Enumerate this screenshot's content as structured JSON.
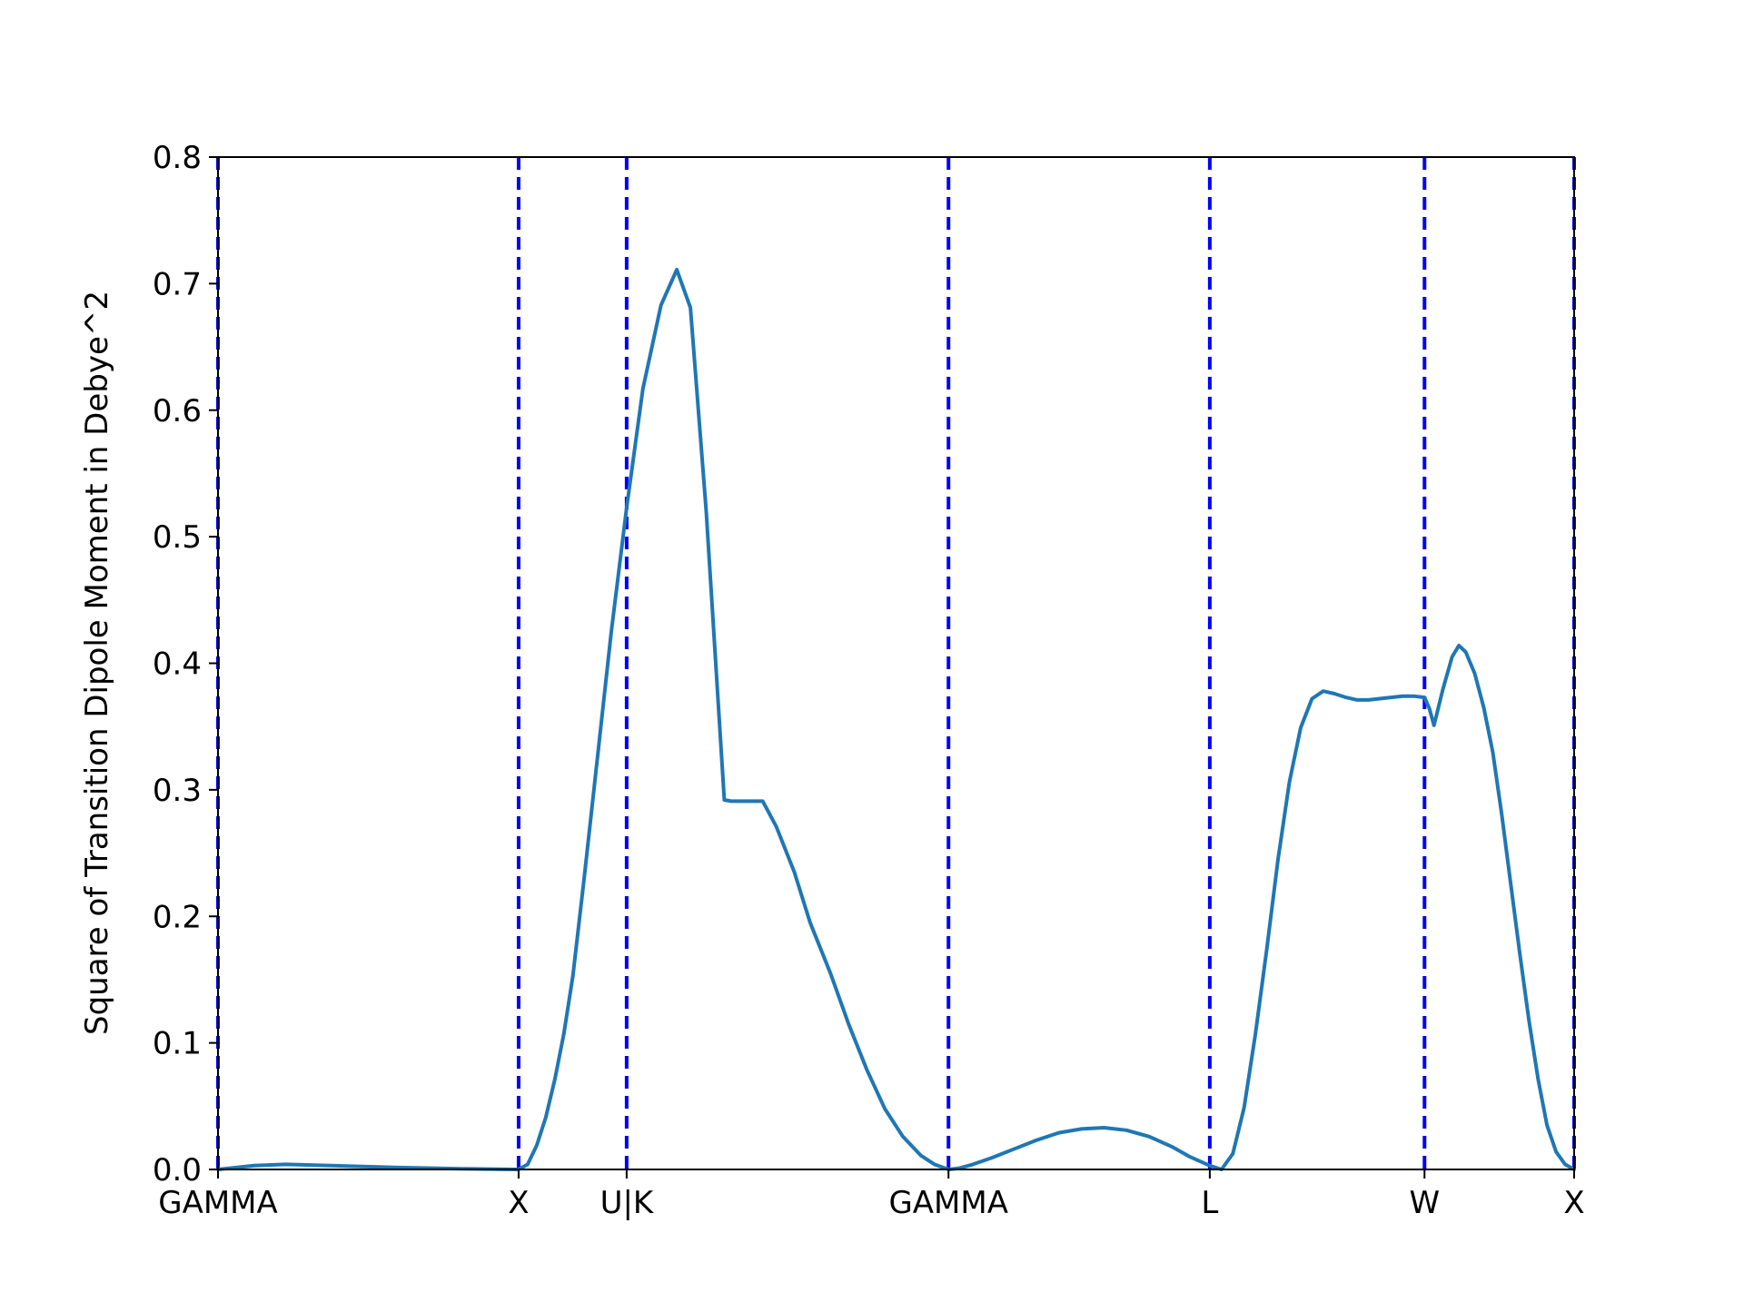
{
  "chart_data": {
    "type": "line",
    "title": "",
    "xlabel": "",
    "ylabel": "Square of Transition Dipole Moment in Debye^2",
    "ylim": [
      0.0,
      0.8
    ],
    "xlim": [
      0,
      300
    ],
    "yticks": [
      0.0,
      0.1,
      0.2,
      0.3,
      0.4,
      0.5,
      0.6,
      0.7,
      0.8
    ],
    "ytick_labels": [
      "0.0",
      "0.1",
      "0.2",
      "0.3",
      "0.4",
      "0.5",
      "0.6",
      "0.7",
      "0.8"
    ],
    "xticks": [
      0,
      66.5,
      90.4,
      161.6,
      219.4,
      266.9,
      300
    ],
    "xtick_labels": [
      "GAMMA",
      "X",
      "U|K",
      "GAMMA",
      "L",
      "W",
      "X"
    ],
    "vlines": [
      0,
      66.5,
      90.4,
      161.6,
      219.4,
      266.9,
      300
    ],
    "vline_style": "dashed",
    "colors": {
      "series": "#1f77b4",
      "vlines": "#0000ff",
      "axes": "#000000"
    },
    "grid": false,
    "series": [
      {
        "x": [
          0,
          8,
          15,
          25,
          40,
          55,
          66.5,
          68.5,
          70.5,
          72.5,
          74.5,
          76.5,
          78.5,
          81,
          84,
          87,
          90.4,
          94,
          98,
          101.5,
          104.5,
          108,
          112,
          113.5,
          116,
          120.5,
          123.5,
          127.5,
          131,
          135.5,
          139.5,
          143.5,
          147.5,
          151.5,
          155.5,
          158.5,
          161.6,
          164,
          167,
          171,
          176,
          181,
          186,
          191,
          196,
          201,
          206,
          211,
          215,
          219.4,
          222,
          224.5,
          227,
          229.5,
          232,
          234.5,
          237,
          239.5,
          242,
          244.5,
          247,
          249.5,
          252,
          254.5,
          257,
          259.5,
          262,
          264.5,
          266.9,
          268,
          269,
          271,
          273,
          274.5,
          276,
          278,
          280,
          282,
          284,
          286,
          288,
          290,
          292,
          294,
          296,
          298,
          300
        ],
        "y": [
          0.0,
          0.003,
          0.004,
          0.003,
          0.0015,
          0.0005,
          0.0,
          0.004,
          0.019,
          0.041,
          0.071,
          0.107,
          0.153,
          0.23,
          0.327,
          0.425,
          0.523,
          0.617,
          0.683,
          0.711,
          0.681,
          0.52,
          0.292,
          0.291,
          0.291,
          0.291,
          0.271,
          0.235,
          0.195,
          0.155,
          0.115,
          0.079,
          0.048,
          0.026,
          0.011,
          0.004,
          0.0,
          0.001,
          0.004,
          0.009,
          0.016,
          0.023,
          0.029,
          0.032,
          0.033,
          0.031,
          0.026,
          0.018,
          0.01,
          0.003,
          0.0,
          0.0125,
          0.049,
          0.107,
          0.174,
          0.245,
          0.306,
          0.349,
          0.372,
          0.378,
          0.376,
          0.373,
          0.371,
          0.371,
          0.372,
          0.373,
          0.374,
          0.374,
          0.373,
          0.364,
          0.351,
          0.38,
          0.405,
          0.414,
          0.409,
          0.392,
          0.365,
          0.33,
          0.28,
          0.225,
          0.17,
          0.118,
          0.072,
          0.035,
          0.014,
          0.004,
          0.0
        ]
      }
    ]
  }
}
